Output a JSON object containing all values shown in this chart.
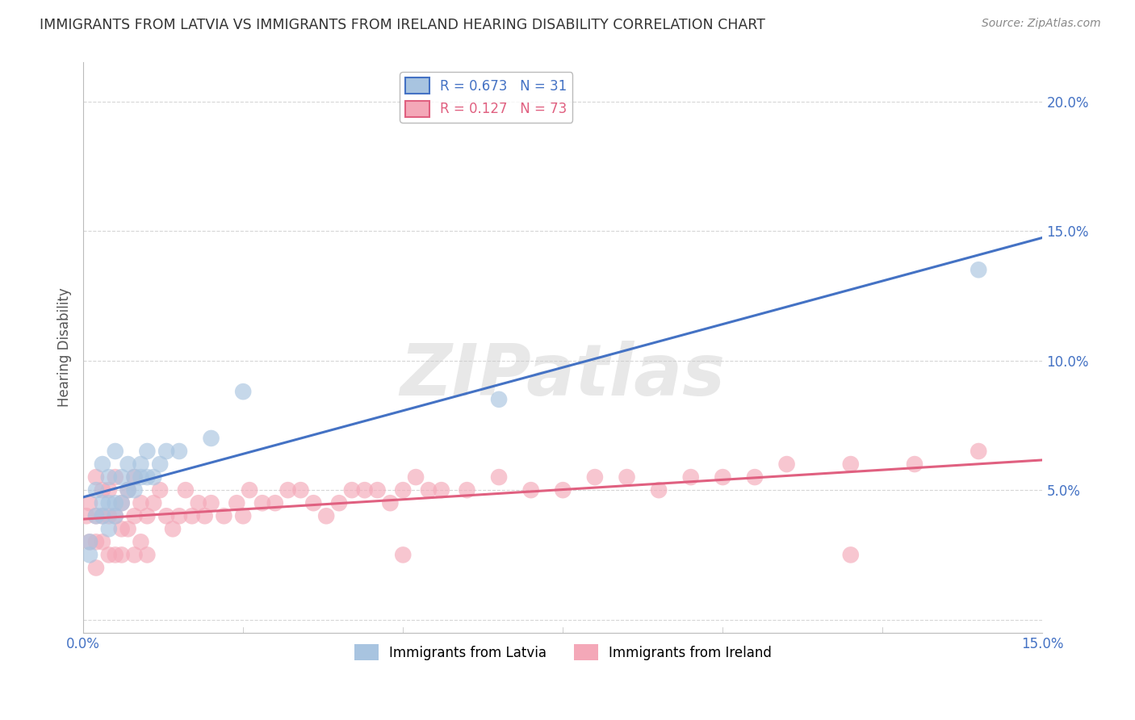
{
  "title": "IMMIGRANTS FROM LATVIA VS IMMIGRANTS FROM IRELAND HEARING DISABILITY CORRELATION CHART",
  "source": "Source: ZipAtlas.com",
  "ylabel": "Hearing Disability",
  "xlim": [
    0.0,
    0.15
  ],
  "ylim": [
    -0.005,
    0.215
  ],
  "xticks": [
    0.0,
    0.025,
    0.05,
    0.075,
    0.1,
    0.125,
    0.15
  ],
  "xticklabels": [
    "0.0%",
    "",
    "",
    "",
    "",
    "",
    "15.0%"
  ],
  "yticks": [
    0.0,
    0.05,
    0.1,
    0.15,
    0.2
  ],
  "yticklabels": [
    "",
    "5.0%",
    "10.0%",
    "15.0%",
    "20.0%"
  ],
  "legend_entries": [
    {
      "label": "R = 0.673   N = 31",
      "color": "#a8c4e0"
    },
    {
      "label": "R = 0.127   N = 73",
      "color": "#f4a8b8"
    }
  ],
  "series1_label": "Immigrants from Latvia",
  "series1_color": "#a8c4e0",
  "series1_line_color": "#4472c4",
  "series2_label": "Immigrants from Ireland",
  "series2_color": "#f4a8b8",
  "series2_line_color": "#e06080",
  "watermark_text": "ZIPatlas",
  "background_color": "#ffffff",
  "grid_color": "#cccccc",
  "latvia_x": [
    0.001,
    0.001,
    0.002,
    0.002,
    0.003,
    0.003,
    0.003,
    0.004,
    0.004,
    0.004,
    0.005,
    0.005,
    0.005,
    0.006,
    0.006,
    0.007,
    0.007,
    0.008,
    0.008,
    0.009,
    0.009,
    0.01,
    0.01,
    0.011,
    0.012,
    0.013,
    0.015,
    0.02,
    0.025,
    0.065,
    0.14
  ],
  "latvia_y": [
    0.025,
    0.03,
    0.04,
    0.05,
    0.04,
    0.045,
    0.06,
    0.035,
    0.045,
    0.055,
    0.04,
    0.045,
    0.065,
    0.045,
    0.055,
    0.05,
    0.06,
    0.05,
    0.055,
    0.055,
    0.06,
    0.055,
    0.065,
    0.055,
    0.06,
    0.065,
    0.065,
    0.07,
    0.088,
    0.085,
    0.135
  ],
  "ireland_x": [
    0.0005,
    0.001,
    0.001,
    0.002,
    0.002,
    0.002,
    0.003,
    0.003,
    0.003,
    0.004,
    0.004,
    0.004,
    0.005,
    0.005,
    0.005,
    0.006,
    0.006,
    0.006,
    0.007,
    0.007,
    0.008,
    0.008,
    0.008,
    0.009,
    0.009,
    0.01,
    0.01,
    0.011,
    0.012,
    0.013,
    0.014,
    0.015,
    0.016,
    0.017,
    0.018,
    0.019,
    0.02,
    0.022,
    0.024,
    0.025,
    0.026,
    0.028,
    0.03,
    0.032,
    0.034,
    0.036,
    0.038,
    0.04,
    0.042,
    0.044,
    0.046,
    0.048,
    0.05,
    0.052,
    0.054,
    0.056,
    0.06,
    0.065,
    0.07,
    0.075,
    0.08,
    0.085,
    0.09,
    0.095,
    0.1,
    0.105,
    0.11,
    0.12,
    0.13,
    0.14,
    0.002,
    0.05,
    0.12
  ],
  "ireland_y": [
    0.04,
    0.03,
    0.045,
    0.03,
    0.04,
    0.055,
    0.03,
    0.04,
    0.05,
    0.025,
    0.04,
    0.05,
    0.025,
    0.04,
    0.055,
    0.025,
    0.035,
    0.045,
    0.035,
    0.05,
    0.025,
    0.04,
    0.055,
    0.03,
    0.045,
    0.025,
    0.04,
    0.045,
    0.05,
    0.04,
    0.035,
    0.04,
    0.05,
    0.04,
    0.045,
    0.04,
    0.045,
    0.04,
    0.045,
    0.04,
    0.05,
    0.045,
    0.045,
    0.05,
    0.05,
    0.045,
    0.04,
    0.045,
    0.05,
    0.05,
    0.05,
    0.045,
    0.05,
    0.055,
    0.05,
    0.05,
    0.05,
    0.055,
    0.05,
    0.05,
    0.055,
    0.055,
    0.05,
    0.055,
    0.055,
    0.055,
    0.06,
    0.06,
    0.06,
    0.065,
    0.02,
    0.025,
    0.025
  ]
}
